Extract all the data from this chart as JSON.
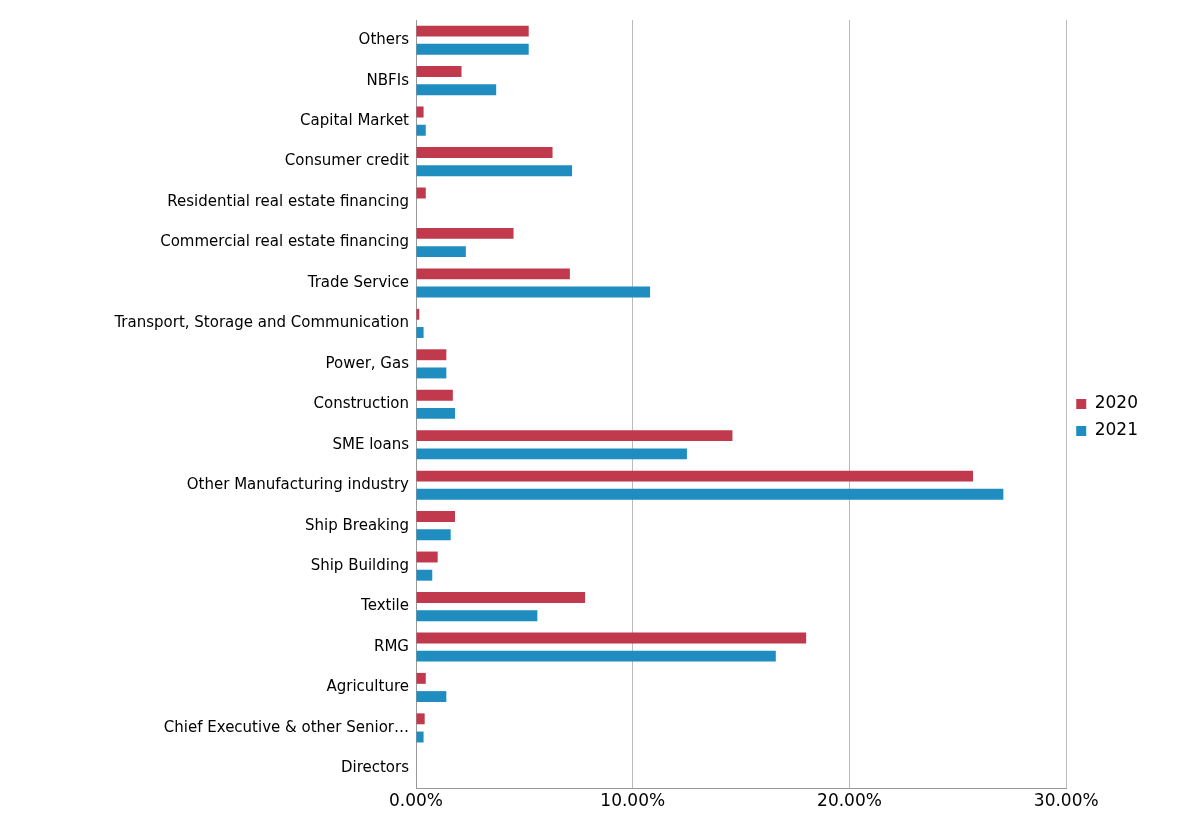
{
  "chart_data": {
    "type": "bar",
    "orientation": "horizontal",
    "categories": [
      "Others",
      "NBFIs",
      "Capital Market",
      "Consumer credit",
      "Residential real estate financing",
      "Commercial real estate financing",
      "Trade Service",
      "Transport, Storage and Communication",
      "Power, Gas",
      "Construction",
      "SME loans",
      "Other Manufacturing industry",
      "Ship Breaking",
      "Ship Building",
      "Textile",
      "RMG",
      "Agriculture",
      "Chief Executive & other Senior…",
      "Directors"
    ],
    "series": [
      {
        "name": "2020",
        "color": "#c0394d",
        "values": [
          5.2,
          2.1,
          0.35,
          6.3,
          0.45,
          4.5,
          7.1,
          0.15,
          1.4,
          1.7,
          14.6,
          25.7,
          1.8,
          1.0,
          7.8,
          18.0,
          0.45,
          0.4,
          0
        ]
      },
      {
        "name": "2021",
        "color": "#1f8dbf",
        "values": [
          5.2,
          3.7,
          0.45,
          7.2,
          0,
          2.3,
          10.8,
          0.35,
          1.4,
          1.8,
          12.5,
          27.1,
          1.6,
          0.75,
          5.6,
          16.6,
          1.4,
          0.35,
          0
        ]
      }
    ],
    "xlim": [
      0,
      30
    ],
    "xticks": [
      {
        "value": 0,
        "label": "0.00%"
      },
      {
        "value": 10,
        "label": "10.00%"
      },
      {
        "value": 20,
        "label": "20.00%"
      },
      {
        "value": 30,
        "label": "30.00%"
      }
    ],
    "grid": "x",
    "legend": "right"
  }
}
